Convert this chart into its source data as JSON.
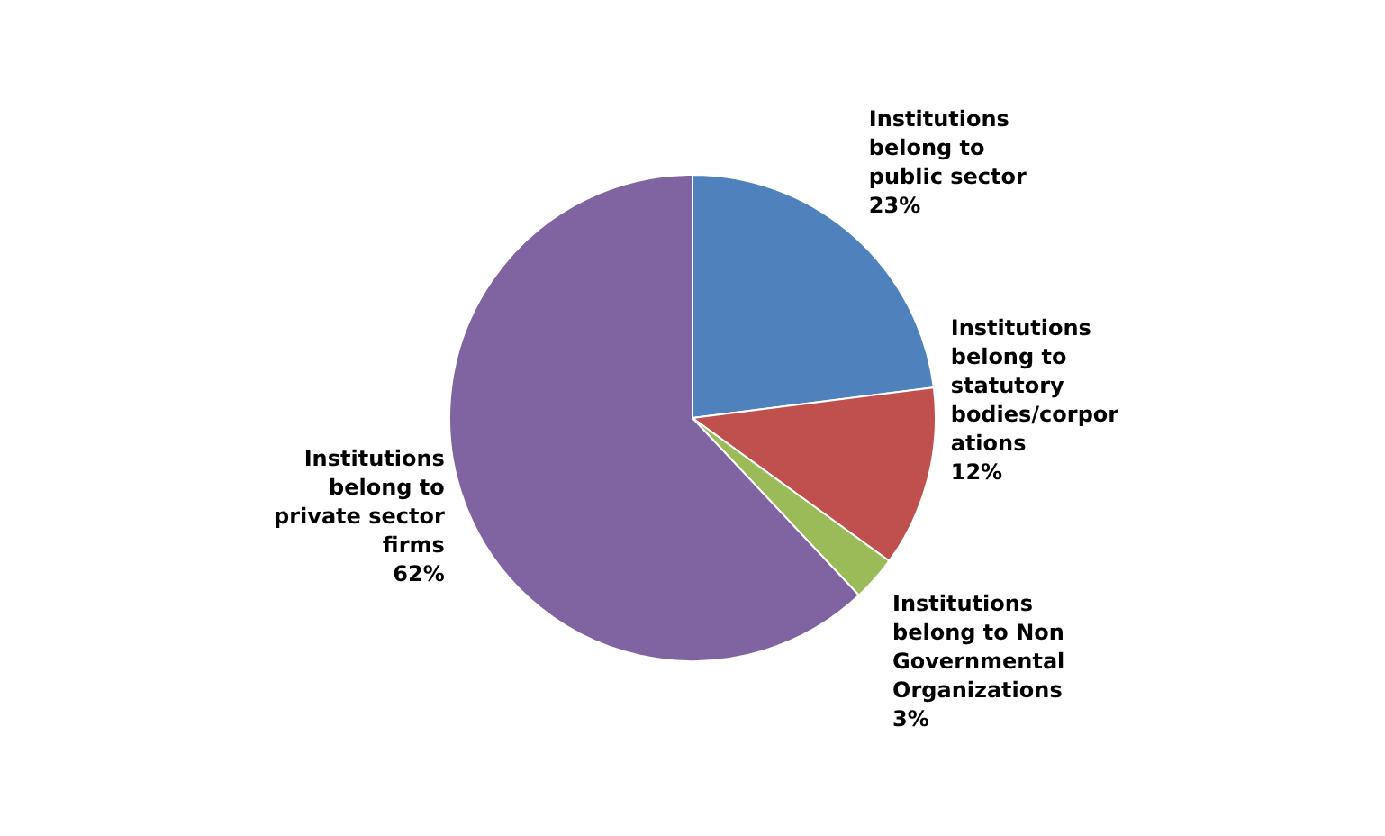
{
  "chart_data": {
    "type": "pie",
    "categories": [
      "Institutions belong to public sector",
      "Institutions belong to statutory bodies/corporations",
      "Institutions belong to Non Governmental Organizations",
      "Institutions belong to private sector firms"
    ],
    "values": [
      23,
      12,
      3,
      62
    ],
    "value_labels": [
      "23%",
      "12%",
      "3%",
      "62%"
    ],
    "colors": [
      "#4f81bd",
      "#c0504d",
      "#9bbb59",
      "#8064a2"
    ],
    "legend": false
  }
}
